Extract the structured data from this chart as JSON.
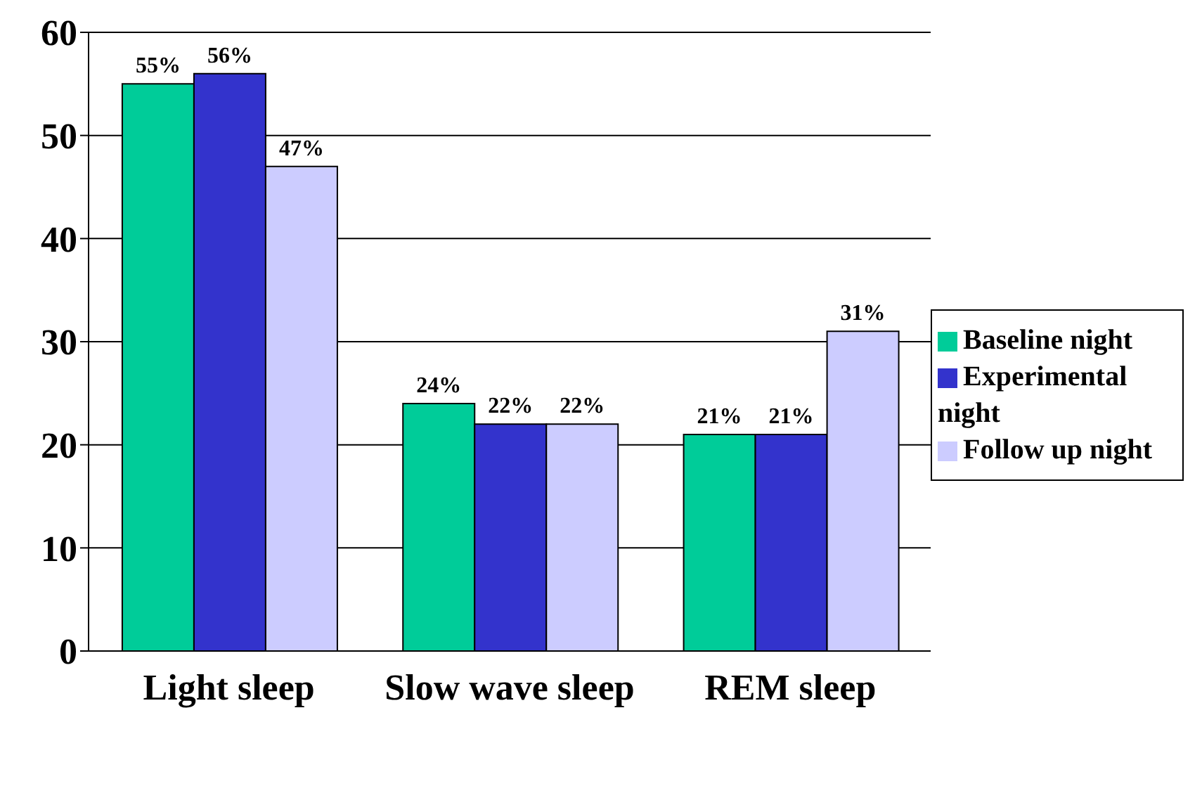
{
  "chart_data": {
    "type": "bar",
    "categories": [
      "Light sleep",
      "Slow wave sleep",
      "REM sleep"
    ],
    "series": [
      {
        "name": "Baseline night",
        "color": "#00cc99",
        "values": [
          55,
          24,
          21
        ],
        "value_labels": [
          "55%",
          "24%",
          "21%"
        ]
      },
      {
        "name": "Experimental night",
        "color": "#3333cc",
        "values": [
          56,
          22,
          21
        ],
        "value_labels": [
          "56%",
          "22%",
          "21%"
        ]
      },
      {
        "name": "Follow up night",
        "color": "#ccccff",
        "values": [
          47,
          22,
          31
        ],
        "value_labels": [
          "47%",
          "22%",
          "31%"
        ]
      }
    ],
    "ylim": [
      0,
      60
    ],
    "yticks": [
      0,
      10,
      20,
      30,
      40,
      50,
      60
    ],
    "grid": "y",
    "legend": "right"
  }
}
